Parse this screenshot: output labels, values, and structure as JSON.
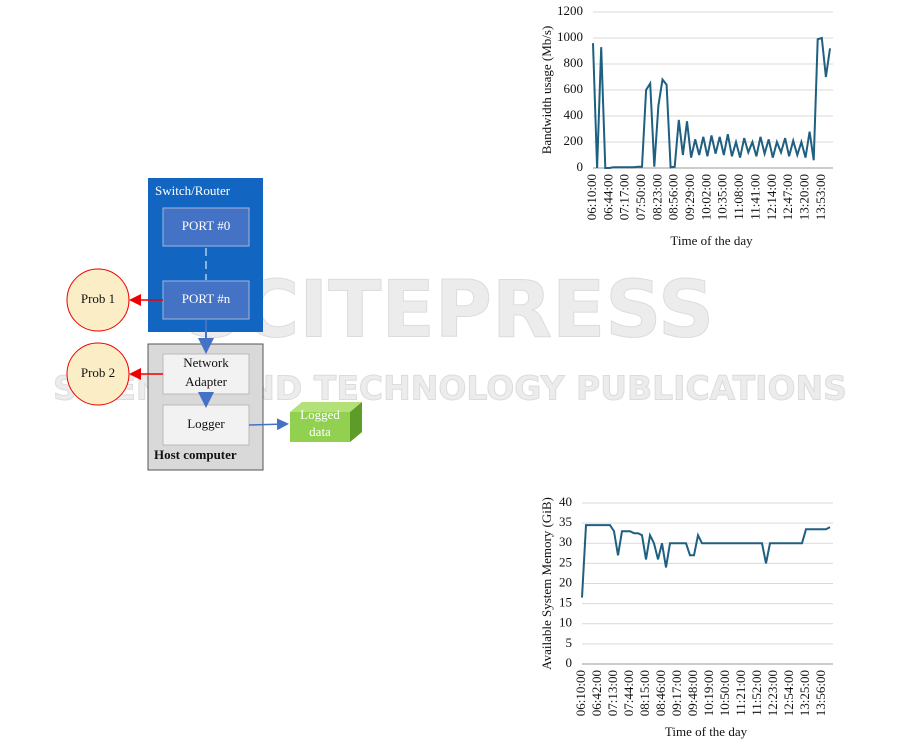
{
  "watermark": {
    "title": "SCITEPRESS",
    "subtitle": "SCIENCE AND TECHNOLOGY PUBLICATIONS"
  },
  "diagram": {
    "switch": "Switch/Router",
    "port0": "PORT #0",
    "portn": "PORT #n",
    "prob1": "Prob 1",
    "prob2": "Prob 2",
    "adapter": [
      "Network",
      "Adapter"
    ],
    "logger": "Logger",
    "host": "Host computer",
    "logged": [
      "Logged",
      "data"
    ]
  },
  "chart_data": [
    {
      "type": "line",
      "y_label": "Bandwidth usage (Mb/s)",
      "x_label": "Time of the day",
      "color": "#1f5f80",
      "ylim": [
        0,
        1200
      ],
      "yticks": [
        0,
        200,
        400,
        600,
        800,
        1000,
        1200
      ],
      "grid": true,
      "categories": [
        "06:10:00",
        null,
        null,
        null,
        "06:44:00",
        null,
        null,
        null,
        "07:17:00",
        null,
        null,
        null,
        "07:50:00",
        null,
        null,
        null,
        "08:23:00",
        null,
        null,
        null,
        "08:56:00",
        null,
        null,
        null,
        "09:29:00",
        null,
        null,
        null,
        "10:02:00",
        null,
        null,
        null,
        "10:35:00",
        null,
        null,
        null,
        "11:08:00",
        null,
        null,
        null,
        "11:41:00",
        null,
        null,
        null,
        "12:14:00",
        null,
        null,
        null,
        "12:47:00",
        null,
        null,
        null,
        "13:20:00",
        null,
        null,
        null,
        "13:53:00",
        null,
        null
      ],
      "values": [
        960,
        0,
        930,
        0,
        0,
        5,
        5,
        5,
        5,
        5,
        5,
        10,
        10,
        600,
        650,
        10,
        480,
        680,
        640,
        5,
        10,
        370,
        100,
        360,
        80,
        220,
        100,
        240,
        90,
        250,
        110,
        240,
        100,
        260,
        90,
        200,
        80,
        230,
        120,
        200,
        90,
        240,
        110,
        220,
        80,
        200,
        120,
        230,
        90,
        210,
        100,
        200,
        80,
        280,
        60,
        990,
        1000,
        700,
        920
      ]
    },
    {
      "type": "line",
      "y_label": "Available System Memory (GiB)",
      "x_label": "Time of the day",
      "color": "#1f5f80",
      "ylim": [
        0,
        40
      ],
      "yticks": [
        0,
        5,
        10,
        15,
        20,
        25,
        30,
        35,
        40
      ],
      "grid": true,
      "categories": [
        "06:10:00",
        null,
        null,
        null,
        "06:42:00",
        null,
        null,
        null,
        "07:13:00",
        null,
        null,
        null,
        "07:44:00",
        null,
        null,
        null,
        "08:15:00",
        null,
        null,
        null,
        "08:46:00",
        null,
        null,
        null,
        "09:17:00",
        null,
        null,
        null,
        "09:48:00",
        null,
        null,
        null,
        "10:19:00",
        null,
        null,
        null,
        "10:50:00",
        null,
        null,
        null,
        "11:21:00",
        null,
        null,
        null,
        "11:52:00",
        null,
        null,
        null,
        "12:23:00",
        null,
        null,
        null,
        "12:54:00",
        null,
        null,
        null,
        "13:25:00",
        null,
        null,
        null,
        "13:56:00",
        null,
        null
      ],
      "values": [
        16.5,
        34.5,
        34.5,
        34.5,
        34.5,
        34.5,
        34.5,
        34.5,
        33,
        27,
        33,
        33,
        33,
        32.5,
        32.5,
        32,
        26,
        32,
        30,
        26,
        30,
        24,
        30,
        30,
        30,
        30,
        30,
        27,
        27,
        32,
        30,
        30,
        30,
        30,
        30,
        30,
        30,
        30,
        30,
        30,
        30,
        30,
        30,
        30,
        30,
        30,
        25,
        30,
        30,
        30,
        30,
        30,
        30,
        30,
        30,
        30,
        33.5,
        33.5,
        33.5,
        33.5,
        33.5,
        33.5,
        34
      ]
    }
  ]
}
